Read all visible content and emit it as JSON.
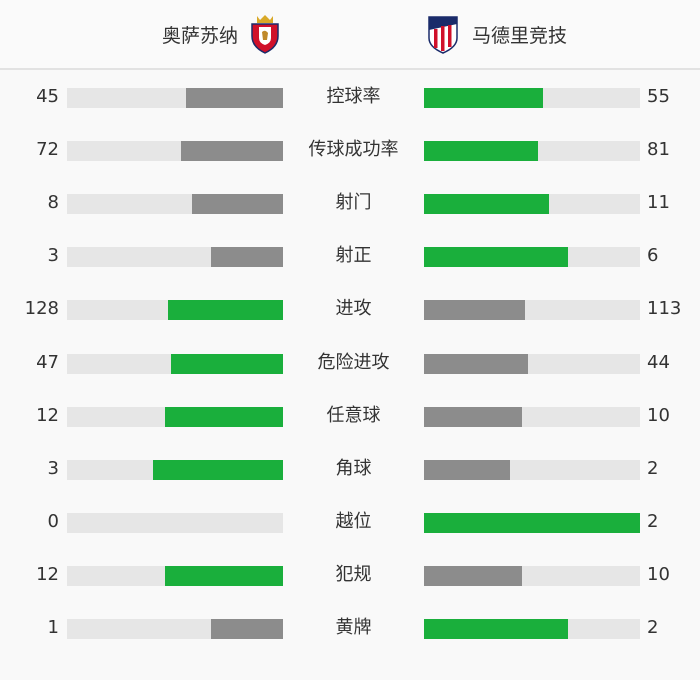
{
  "home_team": {
    "name": "奥萨苏纳",
    "logo": "osasuna-crest"
  },
  "away_team": {
    "name": "马德里竞技",
    "logo": "atletico-madrid-crest"
  },
  "colors": {
    "leader": "#1aaf3c",
    "trailer": "#8c8c8c",
    "track": "#e6e6e6"
  },
  "stats": [
    {
      "label": "控球率",
      "home": "45",
      "away": "55"
    },
    {
      "label": "传球成功率",
      "home": "72",
      "away": "81"
    },
    {
      "label": "射门",
      "home": "8",
      "away": "11"
    },
    {
      "label": "射正",
      "home": "3",
      "away": "6"
    },
    {
      "label": "进攻",
      "home": "128",
      "away": "113"
    },
    {
      "label": "危险进攻",
      "home": "47",
      "away": "44"
    },
    {
      "label": "任意球",
      "home": "12",
      "away": "10"
    },
    {
      "label": "角球",
      "home": "3",
      "away": "2"
    },
    {
      "label": "越位",
      "home": "0",
      "away": "2"
    },
    {
      "label": "犯规",
      "home": "12",
      "away": "10"
    },
    {
      "label": "黄牌",
      "home": "1",
      "away": "2"
    }
  ]
}
